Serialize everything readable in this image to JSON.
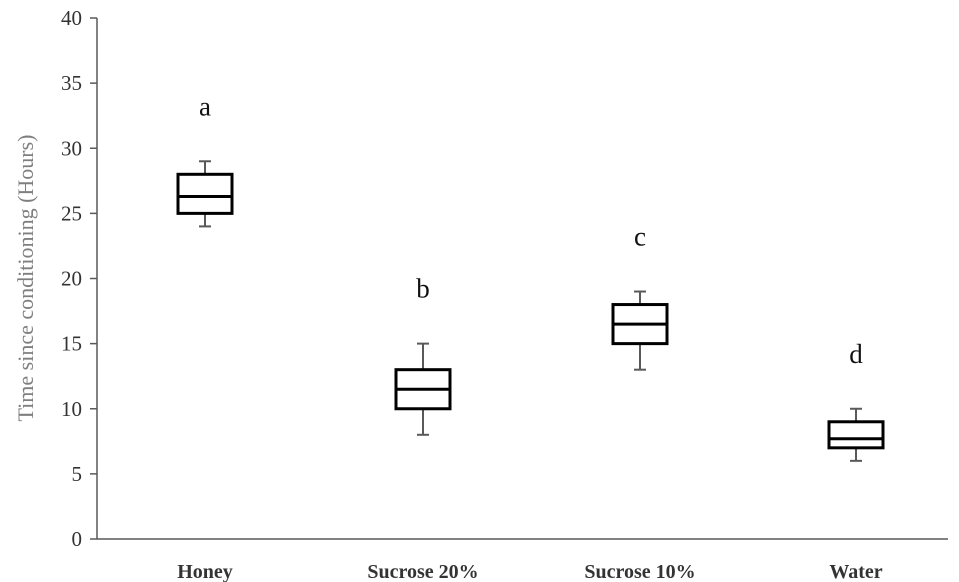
{
  "chart_data": {
    "type": "boxplot",
    "title": "",
    "xlabel": "",
    "ylabel": "Time since conditioning (Hours)",
    "ylim": [
      0,
      40
    ],
    "yticks": [
      0,
      5,
      10,
      15,
      20,
      25,
      30,
      35,
      40
    ],
    "grid": false,
    "categories": [
      "Honey",
      "Sucrose 20%",
      "Sucrose 10%",
      "Water"
    ],
    "boxes": [
      {
        "category": "Honey",
        "min": 24,
        "q1": 25,
        "median": 26.3,
        "q3": 28,
        "max": 29,
        "letter": "a"
      },
      {
        "category": "Sucrose 20%",
        "min": 8,
        "q1": 10,
        "median": 11.5,
        "q3": 13,
        "max": 15,
        "letter": "b"
      },
      {
        "category": "Sucrose 10%",
        "min": 13,
        "q1": 15,
        "median": 16.5,
        "q3": 18,
        "max": 19,
        "letter": "c"
      },
      {
        "category": "Water",
        "min": 6,
        "q1": 7,
        "median": 7.7,
        "q3": 9,
        "max": 10,
        "letter": "d"
      }
    ],
    "colors": {
      "box_stroke": "#000000",
      "whisker": "#595959",
      "axis": "#595959",
      "ylabel": "#7f7f7f"
    }
  }
}
